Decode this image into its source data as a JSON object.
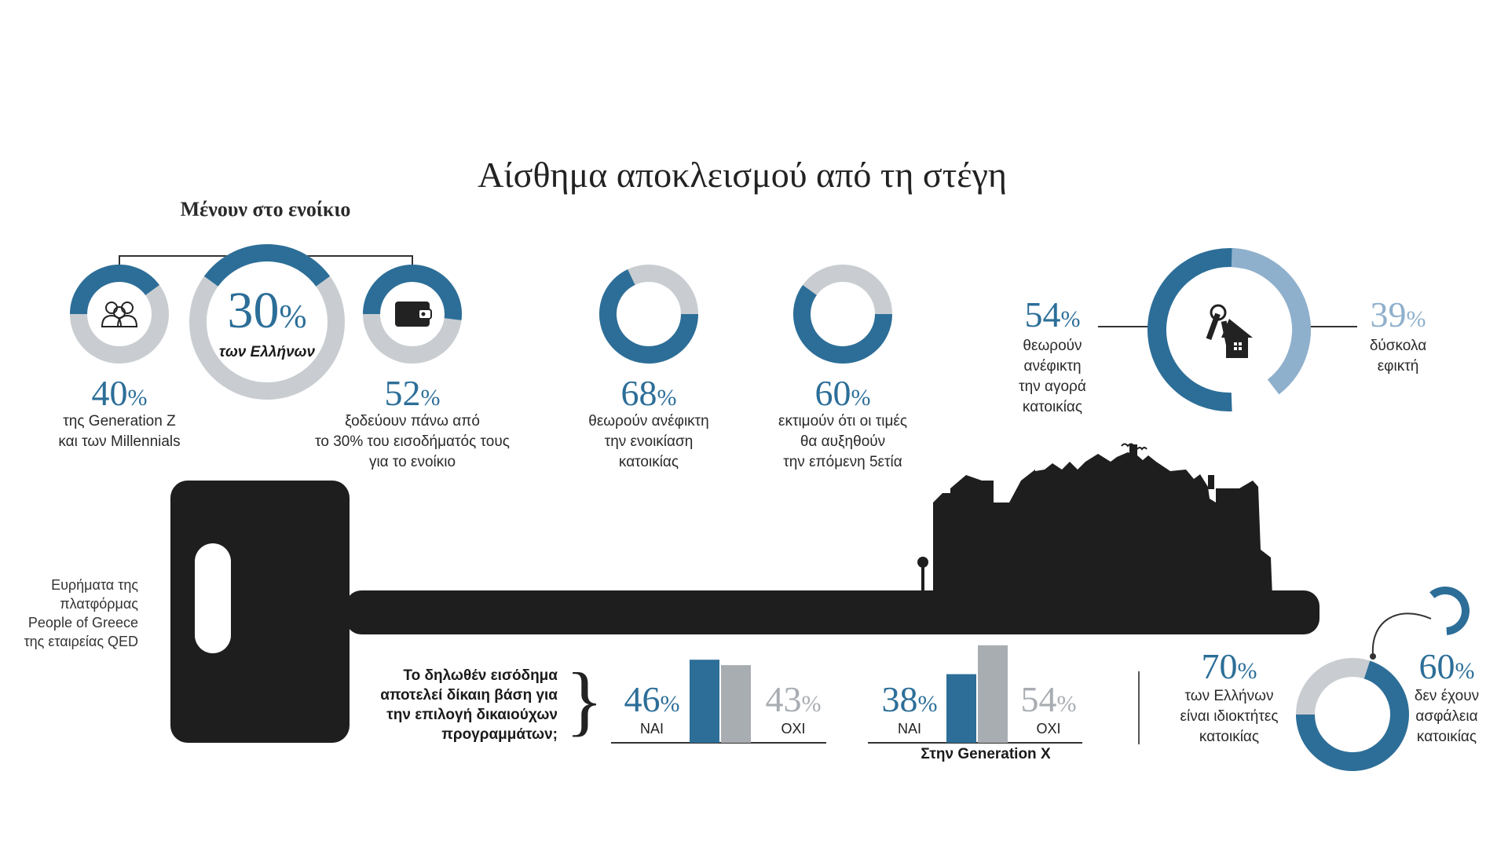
{
  "title": "Αίσθημα αποκλεισμού από τη στέγη",
  "rent_section": {
    "subtitle": "Μένουν στο ενοίκιο",
    "center": {
      "value": 30,
      "unit": "%",
      "caption": "των Ελλήνων"
    },
    "left": {
      "value": 40,
      "unit": "%",
      "caption": "της Generation Z\nκαι των Millennials",
      "icon": "people-icon"
    },
    "right": {
      "value": 52,
      "unit": "%",
      "caption": "ξοδεύουν πάνω από\nτο 30% του εισοδήματός τους\nγια το ενοίκιο",
      "icon": "wallet-icon"
    }
  },
  "rent_unaffordable": {
    "value": 68,
    "unit": "%",
    "caption": "θεωρούν ανέφικτη\nτην ενοικίαση\nκατοικίας"
  },
  "price_rise": {
    "value": 60,
    "unit": "%",
    "caption": "εκτιμούν ότι οι τιμές\nθα αυξηθούν\nτην επόμενη 5ετία"
  },
  "purchase": {
    "icon": "house-keys-icon",
    "unaffordable": {
      "value": 54,
      "unit": "%",
      "caption": "θεωρούν\nανέφικτη\nτην αγορά\nκατοικίας"
    },
    "hard": {
      "value": 39,
      "unit": "%",
      "caption": "δύσκολα\nεφικτή"
    }
  },
  "source": "Ευρήματα της\nπλατφόρμας\nPeople of Greece\nτης εταιρείας QED",
  "question": "Το δηλωθέν εισόδημα\nαποτελεί δίκαιη βάση για\nτην επιλογή δικαιούχων\nπρογραμμάτων;",
  "brace": "}",
  "survey_all": {
    "yes": {
      "value": 46,
      "unit": "%",
      "label": "ΝΑΙ"
    },
    "no": {
      "value": 43,
      "unit": "%",
      "label": "ΟΧΙ"
    }
  },
  "survey_genx": {
    "title": "Στην Generation X",
    "yes": {
      "value": 38,
      "unit": "%",
      "label": "ΝΑΙ"
    },
    "no": {
      "value": 54,
      "unit": "%",
      "label": "ΟΧΙ"
    }
  },
  "owners": {
    "value": 70,
    "unit": "%",
    "caption": "των Ελλήνων\nείναι ιδιοκτήτες\nκατοικίας"
  },
  "insurance": {
    "value": 60,
    "unit": "%",
    "caption": "δεν έχουν\nασφάλεια\nκατοικίας"
  },
  "colors": {
    "primary": "#2c6e98",
    "secondary": "#c9cdd1",
    "light_blue": "#8fb0cc",
    "grey_bar": "#a8adb2",
    "key": "#1e1e1e"
  },
  "chart_data": [
    {
      "type": "pie",
      "title": "Μένουν στο ενοίκιο",
      "values": [
        30,
        70
      ],
      "labels": [
        "των Ελλήνων",
        ""
      ]
    },
    {
      "type": "pie",
      "title": "Generation Z και Millennials στο ενοίκιο",
      "values": [
        40,
        60
      ]
    },
    {
      "type": "pie",
      "title": "ξοδεύουν πάνω από το 30% του εισοδήματός τους για το ενοίκιο",
      "values": [
        52,
        48
      ]
    },
    {
      "type": "pie",
      "title": "θεωρούν ανέφικτη την ενοικίαση κατοικίας",
      "values": [
        68,
        32
      ]
    },
    {
      "type": "pie",
      "title": "εκτιμούν ότι οι τιμές θα αυξηθούν την επόμενη 5ετία",
      "values": [
        60,
        40
      ]
    },
    {
      "type": "pie",
      "title": "Αγορά κατοικίας",
      "categories": [
        "ανέφικτη",
        "δύσκολα εφικτή"
      ],
      "values": [
        54,
        39
      ]
    },
    {
      "type": "bar",
      "title": "Το δηλωθέν εισόδημα αποτελεί δίκαιη βάση για την επιλογή δικαιούχων προγραμμάτων;",
      "categories": [
        "ΝΑΙ",
        "ΟΧΙ"
      ],
      "values": [
        46,
        43
      ]
    },
    {
      "type": "bar",
      "title": "Στην Generation X",
      "categories": [
        "ΝΑΙ",
        "ΟΧΙ"
      ],
      "values": [
        38,
        54
      ]
    },
    {
      "type": "pie",
      "title": "των Ελλήνων είναι ιδιοκτήτες κατοικίας",
      "values": [
        70,
        30
      ]
    },
    {
      "type": "pie",
      "title": "δεν έχουν ασφάλεια κατοικίας",
      "values": [
        60,
        40
      ]
    }
  ]
}
